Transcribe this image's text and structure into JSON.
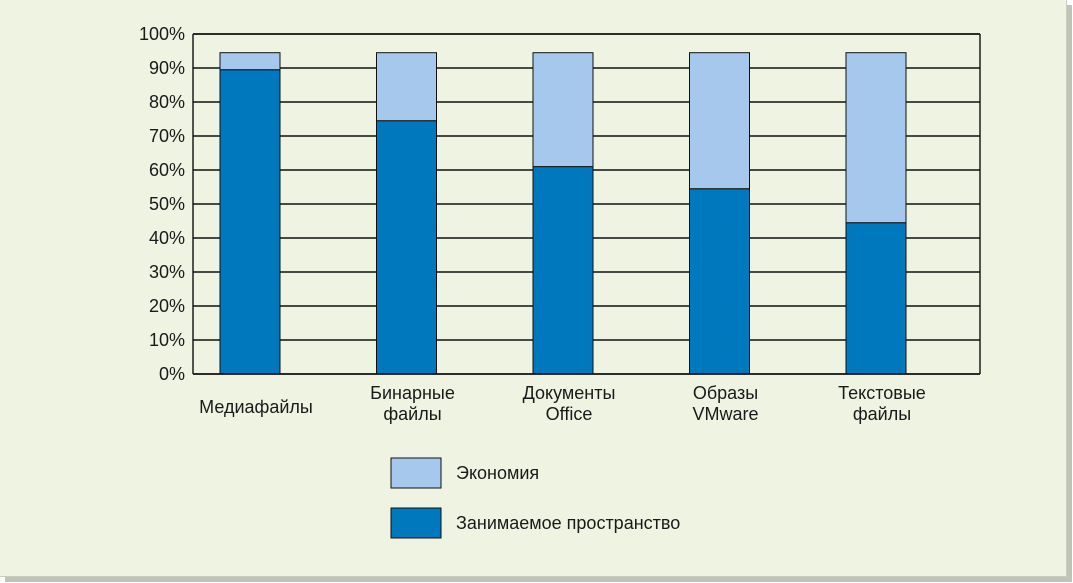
{
  "chart_data": {
    "type": "bar",
    "stacked": true,
    "categories": [
      [
        "Медиафайлы"
      ],
      [
        "Бинарные",
        "файлы"
      ],
      [
        "Документы",
        "Office"
      ],
      [
        "Образы",
        "VMware"
      ],
      [
        "Текстовые",
        "файлы"
      ]
    ],
    "series": [
      {
        "name": "Занимаемое пространство",
        "values": [
          89.5,
          74.5,
          61,
          54.5,
          44.5
        ],
        "color": "#0078be"
      },
      {
        "name": "Экономия",
        "values": [
          5,
          20,
          33.5,
          40,
          50
        ],
        "color": "#a6c8ec"
      }
    ],
    "y_ticks": [
      "0%",
      "10%",
      "20%",
      "30%",
      "40%",
      "50%",
      "60%",
      "70%",
      "80%",
      "90%",
      "100%"
    ],
    "ylim": [
      0,
      100
    ],
    "grid": true,
    "legend_position": "bottom-center",
    "legend": [
      {
        "name": "Экономия",
        "color": "#a6c8ec"
      },
      {
        "name": "Занимаемое пространство",
        "color": "#0078be"
      }
    ]
  }
}
